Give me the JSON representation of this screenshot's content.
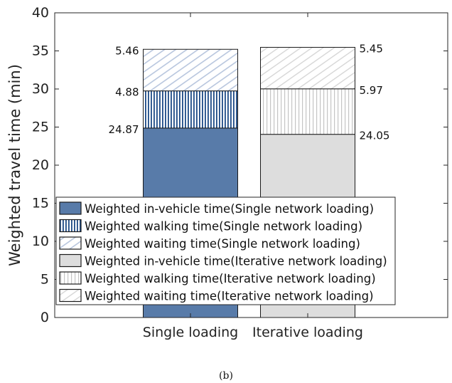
{
  "chart_data": {
    "type": "bar",
    "stacked": true,
    "categories": [
      "Single loading",
      "Iterative loading"
    ],
    "ylabel": "Weighted travel time (min)",
    "ylim": [
      0,
      40
    ],
    "yticks": [
      0,
      5,
      10,
      15,
      20,
      25,
      30,
      35,
      40
    ],
    "grid": false,
    "legend_position": "lower-left",
    "series": [
      {
        "name": "Weighted in-vehicle time(Single network loading)",
        "values": [
          24.87,
          0
        ],
        "color": "#587ba9",
        "pattern": "solid"
      },
      {
        "name": "Weighted walking time(Single network loading)",
        "values": [
          4.88,
          0
        ],
        "color": "#1e4b86",
        "pattern": "vertical"
      },
      {
        "name": "Weighted waiting time(Single network loading)",
        "values": [
          5.46,
          0
        ],
        "color": "#b8c6de",
        "pattern": "diagonal"
      },
      {
        "name": "Weighted in-vehicle time(Iterative network loading)",
        "values": [
          0,
          24.05
        ],
        "color": "#dddddd",
        "pattern": "solid"
      },
      {
        "name": "Weighted walking time(Iterative network loading)",
        "values": [
          0,
          5.97
        ],
        "color": "#c4c4c4",
        "pattern": "vertical"
      },
      {
        "name": "Weighted waiting time(Iterative network loading)",
        "values": [
          0,
          5.45
        ],
        "color": "#d6d6d6",
        "pattern": "diagonal"
      }
    ],
    "data_labels": [
      {
        "bar": 0,
        "segment": 0,
        "text": "24.87",
        "side": "left"
      },
      {
        "bar": 0,
        "segment": 1,
        "text": "4.88",
        "side": "left"
      },
      {
        "bar": 0,
        "segment": 2,
        "text": "5.46",
        "side": "left"
      },
      {
        "bar": 1,
        "segment": 3,
        "text": "24.05",
        "side": "right"
      },
      {
        "bar": 1,
        "segment": 4,
        "text": "5.97",
        "side": "right"
      },
      {
        "bar": 1,
        "segment": 5,
        "text": "5.45",
        "side": "right"
      }
    ]
  },
  "caption": "(b)"
}
